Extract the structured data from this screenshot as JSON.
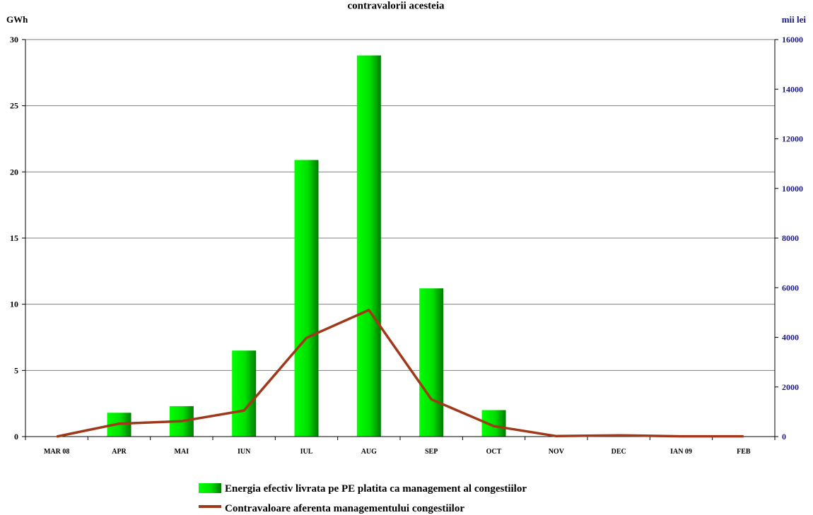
{
  "chart_data": {
    "type": "bar",
    "title": "contravalorii acesteia",
    "y_left_label": "GWh",
    "y_right_label": "mii lei",
    "y_left_lim": [
      0,
      30
    ],
    "y_left_ticks": [
      "0",
      "5",
      "10",
      "15",
      "20",
      "25",
      "30"
    ],
    "y_right_lim": [
      0,
      16000
    ],
    "y_right_ticks": [
      "0",
      "2000",
      "4000",
      "6000",
      "8000",
      "10000",
      "12000",
      "14000",
      "16000"
    ],
    "grid": true,
    "legend_position": "bottom",
    "categories": [
      "MAR 08",
      "APR",
      "MAI",
      "IUN",
      "IUL",
      "AUG",
      "SEP",
      "OCT",
      "NOV",
      "DEC",
      "IAN 09",
      "FEB"
    ],
    "series": [
      {
        "name": "Energia efectiv livrata pe PE platita ca management al congestiilor",
        "kind": "bar",
        "axis": "left",
        "color": "#00ff00",
        "values": [
          0,
          1.8,
          2.3,
          6.5,
          20.9,
          28.8,
          11.2,
          2.0,
          0,
          0,
          0,
          0
        ]
      },
      {
        "name": "Contravaloare aferenta managementului congestiilor",
        "kind": "line",
        "axis": "right",
        "color": "#a0381a",
        "values": [
          0,
          520,
          620,
          1050,
          3980,
          5100,
          1500,
          420,
          20,
          50,
          10,
          10
        ]
      }
    ]
  }
}
